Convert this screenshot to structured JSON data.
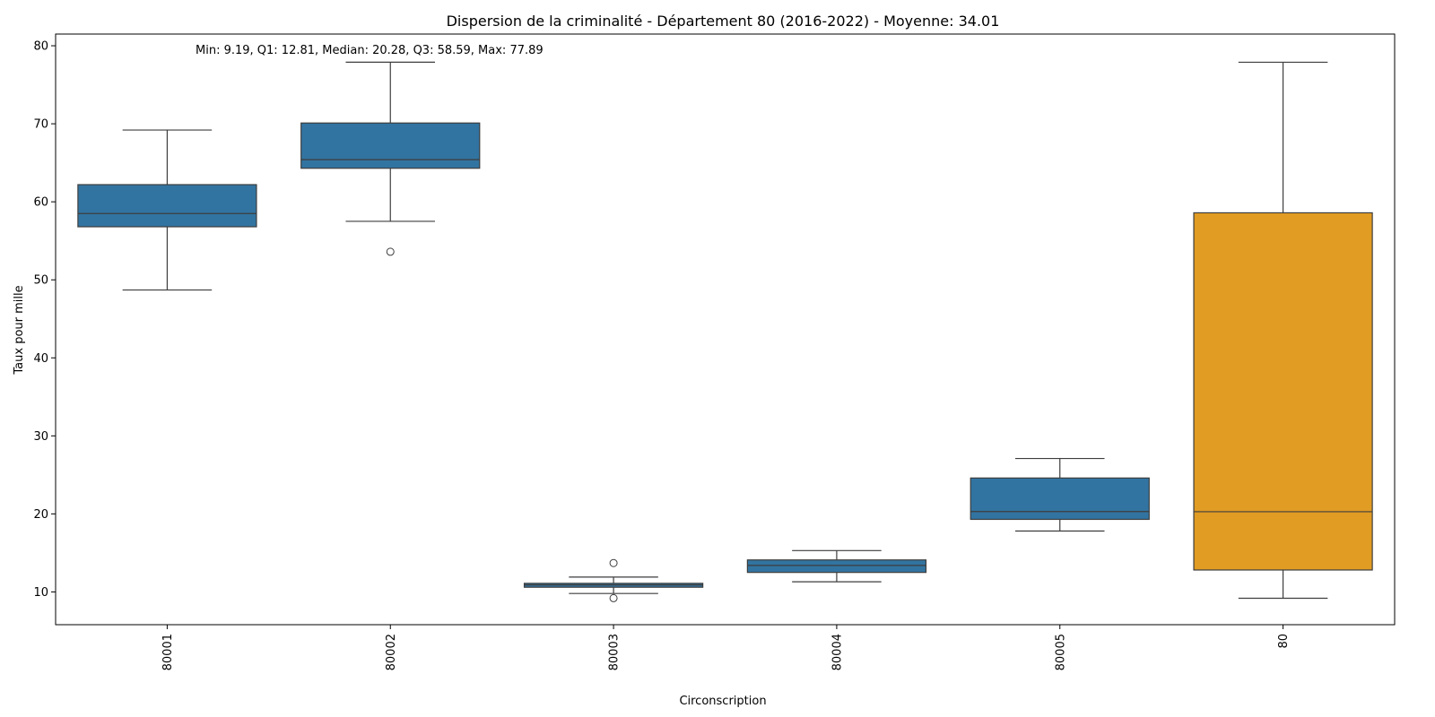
{
  "chart_data": {
    "type": "box",
    "title": "Dispersion de la criminalité - Département 80 (2016-2022) - Moyenne: 34.01",
    "xlabel": "Circonscription",
    "ylabel": "Taux pour mille",
    "ylim": [
      5.8,
      81.5
    ],
    "yticks": [
      10,
      20,
      30,
      40,
      50,
      60,
      70,
      80
    ],
    "grid": false,
    "annotation": "Min: 9.19, Q1: 12.81, Median: 20.28, Q3: 58.59, Max: 77.89",
    "colors": {
      "box": "#3274a1",
      "highlight": "#e19c24",
      "line": "#3d3d3d"
    },
    "categories": [
      "80001",
      "80002",
      "80003",
      "80004",
      "80005",
      "80"
    ],
    "boxes": [
      {
        "category": "80001",
        "whisker_low": 48.7,
        "q1": 56.8,
        "median": 58.5,
        "q3": 62.2,
        "whisker_high": 69.2,
        "outliers": [],
        "color": "#3274a1"
      },
      {
        "category": "80002",
        "whisker_low": 57.5,
        "q1": 64.3,
        "median": 65.4,
        "q3": 70.1,
        "whisker_high": 77.9,
        "outliers": [
          53.6
        ],
        "color": "#3274a1"
      },
      {
        "category": "80003",
        "whisker_low": 9.8,
        "q1": 10.6,
        "median": 10.9,
        "q3": 11.1,
        "whisker_high": 11.9,
        "outliers": [
          13.7,
          9.2
        ],
        "color": "#3274a1"
      },
      {
        "category": "80004",
        "whisker_low": 11.3,
        "q1": 12.5,
        "median": 13.4,
        "q3": 14.1,
        "whisker_high": 15.3,
        "outliers": [],
        "color": "#3274a1"
      },
      {
        "category": "80005",
        "whisker_low": 17.8,
        "q1": 19.3,
        "median": 20.3,
        "q3": 24.6,
        "whisker_high": 27.1,
        "outliers": [],
        "color": "#3274a1"
      },
      {
        "category": "80",
        "whisker_low": 9.19,
        "q1": 12.81,
        "median": 20.28,
        "q3": 58.59,
        "whisker_high": 77.89,
        "outliers": [],
        "color": "#e19c24"
      }
    ]
  }
}
